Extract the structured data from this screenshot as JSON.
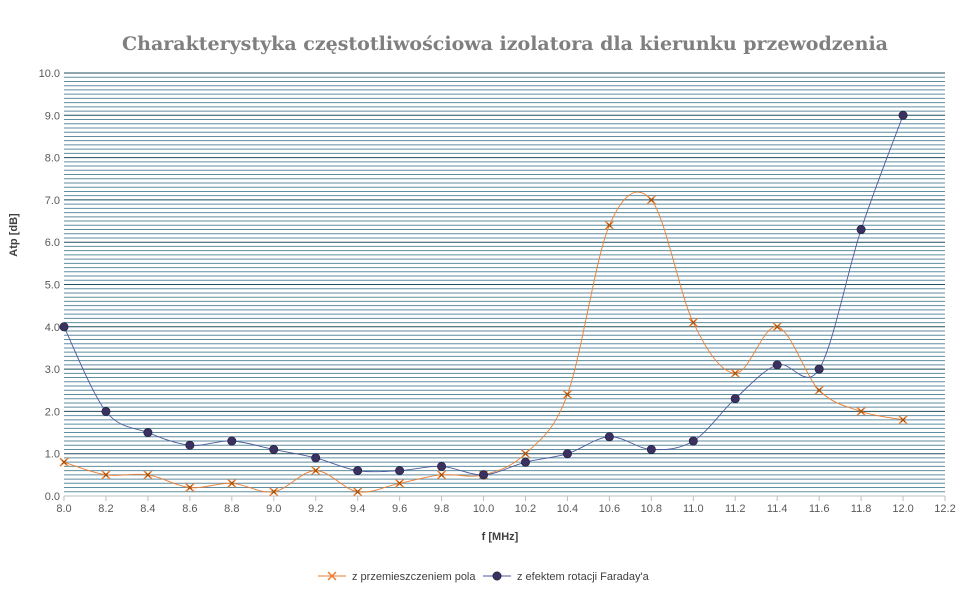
{
  "chart_data": {
    "type": "line",
    "title": "Charakterystyka częstotliwościowa izolatora dla kierunku przewodzenia",
    "xlabel": "f [MHz]",
    "ylabel": "Atp [dB]",
    "xlim": [
      8.0,
      12.2
    ],
    "ylim": [
      0.0,
      10.0
    ],
    "x_ticks": [
      "8.0",
      "8.2",
      "8.4",
      "8.6",
      "8.8",
      "9.0",
      "9.2",
      "9.4",
      "9.6",
      "9.8",
      "10.0",
      "10.2",
      "10.4",
      "10.6",
      "10.8",
      "11.0",
      "11.2",
      "11.4",
      "11.6",
      "11.8",
      "12.0",
      "12.2"
    ],
    "y_ticks": [
      "0.0",
      "1.0",
      "2.0",
      "3.0",
      "4.0",
      "5.0",
      "6.0",
      "7.0",
      "8.0",
      "9.0",
      "10.0"
    ],
    "grid": true,
    "legend_position": "bottom",
    "series": [
      {
        "name": "z przemieszczeniem pola",
        "color": "#ed7d31",
        "marker_color": "#9c4a00",
        "marker": "x",
        "x": [
          8.0,
          8.2,
          8.4,
          8.6,
          8.8,
          9.0,
          9.2,
          9.4,
          9.6,
          9.8,
          10.0,
          10.2,
          10.4,
          10.6,
          10.8,
          11.0,
          11.2,
          11.4,
          11.6,
          11.8,
          12.0
        ],
        "y": [
          0.8,
          0.5,
          0.5,
          0.2,
          0.3,
          0.1,
          0.6,
          0.1,
          0.3,
          0.5,
          0.5,
          1.0,
          2.4,
          6.4,
          7.0,
          4.1,
          2.9,
          4.0,
          2.5,
          2.0,
          1.8
        ]
      },
      {
        "name": "z efektem rotacji Faraday'a",
        "color": "#4a5a9c",
        "marker_color": "#3b3160",
        "marker": "circle",
        "x": [
          8.0,
          8.2,
          8.4,
          8.6,
          8.8,
          9.0,
          9.2,
          9.4,
          9.6,
          9.8,
          10.0,
          10.2,
          10.4,
          10.6,
          10.8,
          11.0,
          11.2,
          11.4,
          11.6,
          11.8,
          12.0
        ],
        "y": [
          4.0,
          2.0,
          1.5,
          1.2,
          1.3,
          1.1,
          0.9,
          0.6,
          0.6,
          0.7,
          0.5,
          0.8,
          1.0,
          1.4,
          1.1,
          1.3,
          2.3,
          3.1,
          3.0,
          6.3,
          9.0
        ]
      }
    ]
  }
}
